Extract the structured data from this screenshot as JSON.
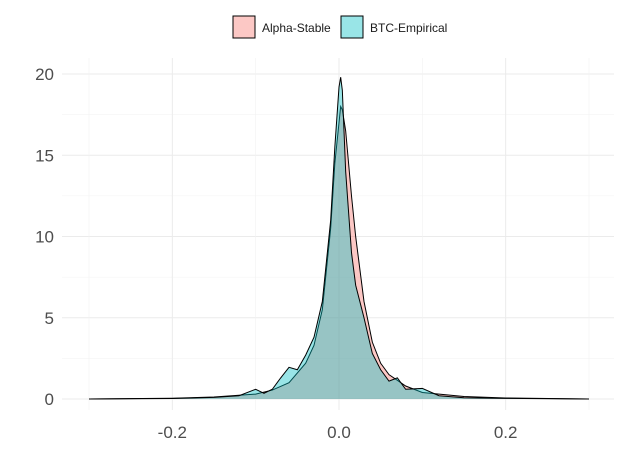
{
  "chart_data": {
    "type": "area",
    "title": "",
    "xlabel": "",
    "ylabel": "",
    "xlim": [
      -0.3,
      0.3
    ],
    "ylim": [
      0,
      20
    ],
    "x_ticks": [
      -0.2,
      0.0,
      0.2
    ],
    "x_tick_labels": [
      "-0.2",
      "0.0",
      "0.2"
    ],
    "y_ticks": [
      0,
      5,
      10,
      15,
      20
    ],
    "y_tick_labels": [
      "0",
      "5",
      "10",
      "15",
      "20"
    ],
    "grid": true,
    "legend_position": "top",
    "series": [
      {
        "name": "Alpha-Stable",
        "color": "#f8766d",
        "fill_opacity": 0.4,
        "points": [
          [
            -0.3,
            0.0
          ],
          [
            -0.2,
            0.05
          ],
          [
            -0.15,
            0.12
          ],
          [
            -0.1,
            0.3
          ],
          [
            -0.08,
            0.55
          ],
          [
            -0.06,
            1.0
          ],
          [
            -0.04,
            2.2
          ],
          [
            -0.03,
            3.3
          ],
          [
            -0.02,
            5.5
          ],
          [
            -0.01,
            10.5
          ],
          [
            -0.005,
            14.5
          ],
          [
            0.0,
            17.0
          ],
          [
            0.002,
            18.0
          ],
          [
            0.004,
            17.8
          ],
          [
            0.008,
            16.5
          ],
          [
            0.015,
            12.5
          ],
          [
            0.02,
            10.0
          ],
          [
            0.03,
            6.0
          ],
          [
            0.04,
            3.5
          ],
          [
            0.05,
            2.2
          ],
          [
            0.06,
            1.5
          ],
          [
            0.08,
            0.8
          ],
          [
            0.1,
            0.4
          ],
          [
            0.15,
            0.15
          ],
          [
            0.2,
            0.06
          ],
          [
            0.3,
            0.0
          ]
        ]
      },
      {
        "name": "BTC-Empirical",
        "color": "#00bfc4",
        "fill_opacity": 0.4,
        "points": [
          [
            -0.3,
            0.0
          ],
          [
            -0.2,
            0.03
          ],
          [
            -0.15,
            0.1
          ],
          [
            -0.12,
            0.2
          ],
          [
            -0.1,
            0.6
          ],
          [
            -0.09,
            0.35
          ],
          [
            -0.08,
            0.6
          ],
          [
            -0.07,
            1.3
          ],
          [
            -0.06,
            1.95
          ],
          [
            -0.05,
            1.8
          ],
          [
            -0.04,
            2.7
          ],
          [
            -0.03,
            3.8
          ],
          [
            -0.02,
            6.0
          ],
          [
            -0.01,
            11.0
          ],
          [
            -0.005,
            15.5
          ],
          [
            0.0,
            19.2
          ],
          [
            0.002,
            19.8
          ],
          [
            0.004,
            19.0
          ],
          [
            0.008,
            14.0
          ],
          [
            0.015,
            9.0
          ],
          [
            0.02,
            7.0
          ],
          [
            0.03,
            5.0
          ],
          [
            0.04,
            2.8
          ],
          [
            0.05,
            1.8
          ],
          [
            0.06,
            1.1
          ],
          [
            0.07,
            1.3
          ],
          [
            0.08,
            0.6
          ],
          [
            0.1,
            0.65
          ],
          [
            0.12,
            0.2
          ],
          [
            0.15,
            0.08
          ],
          [
            0.2,
            0.04
          ],
          [
            0.3,
            0.0
          ]
        ]
      }
    ]
  }
}
